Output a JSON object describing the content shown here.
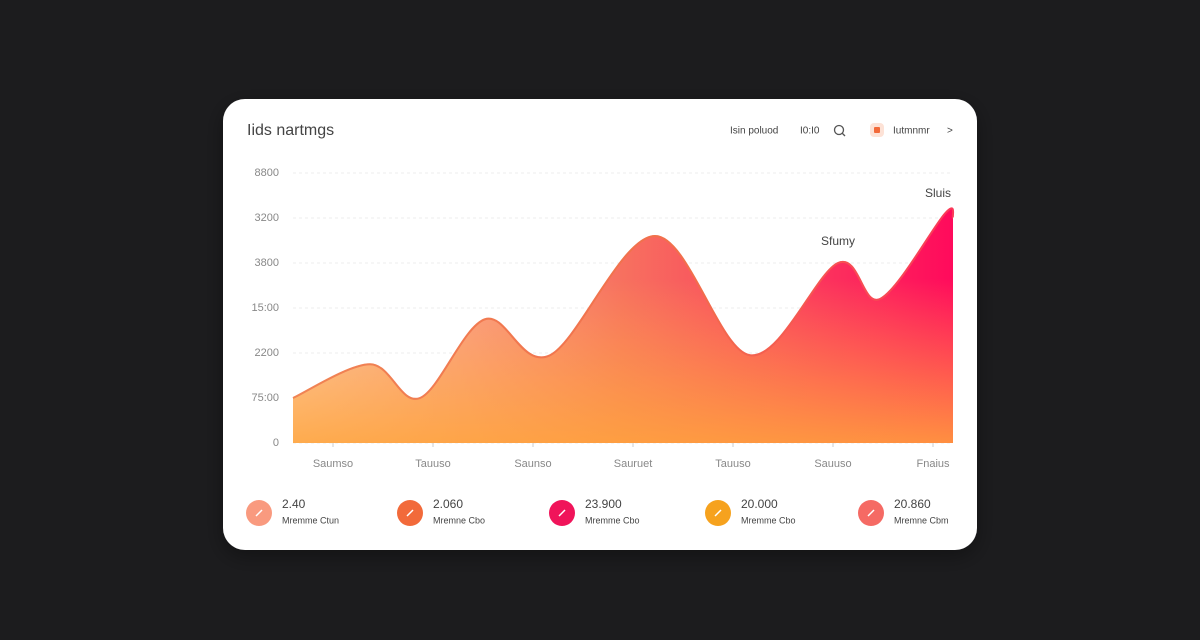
{
  "header": {
    "title": "Iids nartmgs",
    "links": [
      "Isin poluod",
      "I0:I0"
    ],
    "user": "Iutmnmr",
    "more": ">"
  },
  "chart_data": {
    "type": "area",
    "x": [
      -0.4,
      0.37,
      0.87,
      1.52,
      2.17,
      3.22,
      4.17,
      5.05,
      5.47,
      6.12,
      6.2
    ],
    "values": [
      1,
      1.75,
      1,
      2.75,
      1.95,
      4.6,
      1.95,
      4,
      3.2,
      5.1,
      5.0
    ],
    "color": "#f0784c",
    "xlim": [
      -0.4,
      6.2
    ],
    "xticks": [
      {
        "value": 0,
        "label": "Saumso"
      },
      {
        "value": 1,
        "label": "Tauuso"
      },
      {
        "value": 2,
        "label": "Saunso"
      },
      {
        "value": 3,
        "label": "Sauruet"
      },
      {
        "value": 4,
        "label": "Tauuso"
      },
      {
        "value": 5,
        "label": "Sauuso"
      },
      {
        "value": 6,
        "label": "Fnaius"
      }
    ],
    "ylim": [
      0,
      6
    ],
    "yticks": [
      0,
      {
        "value": 1,
        "label": "75:00"
      },
      {
        "value": 2,
        "label": "2200"
      },
      {
        "value": 3,
        "label": "15:00"
      },
      {
        "value": 4,
        "label": "3800"
      },
      {
        "value": 5,
        "label": "3200"
      },
      {
        "value": 6,
        "label": "8800"
      }
    ],
    "grid": true,
    "annotations": [
      "Sluis",
      "Sfumy"
    ]
  },
  "stats": [
    {
      "value": "2.40",
      "label": "Mremme Ctun",
      "color": "#f99a7f"
    },
    {
      "value": "2.060",
      "label": "Mremne Cbo",
      "color": "#f26a3a"
    },
    {
      "value": "23.900",
      "label": "Mremme Cbo",
      "color": "#f0145a"
    },
    {
      "value": "20.000",
      "label": "Mremme Cbo",
      "color": "#f6a21e"
    },
    {
      "value": "20.860",
      "label": "Mremne Cbm",
      "color": "#f56a64"
    }
  ]
}
